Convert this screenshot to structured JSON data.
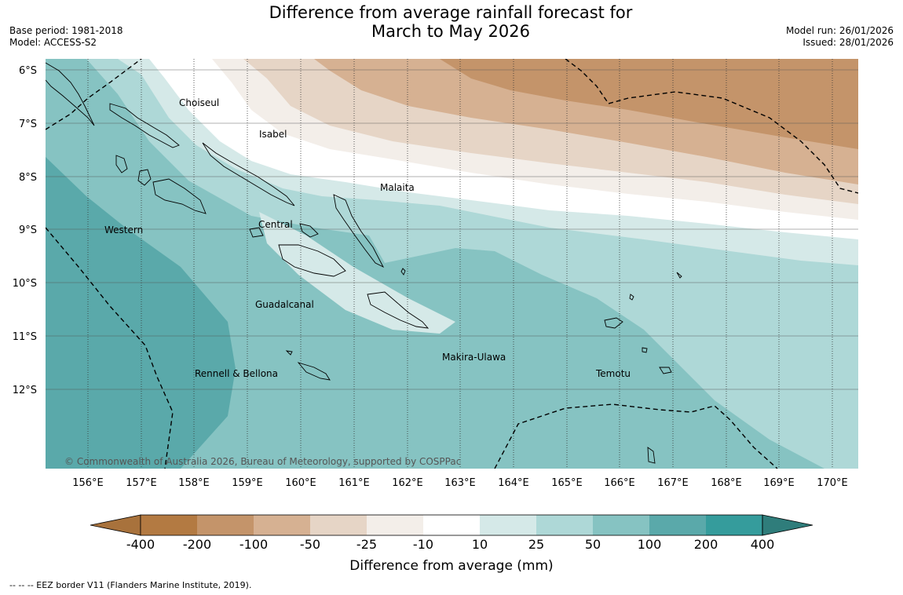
{
  "title_line1": "Difference from average rainfall forecast for",
  "title_line2": "March to May 2026",
  "meta_left": {
    "base_period": "Base period: 1981-2018",
    "model": "Model: ACCESS-S2"
  },
  "meta_right": {
    "model_run": "Model run: 26/01/2026",
    "issued": "Issued: 28/01/2026"
  },
  "map": {
    "lat_labels": [
      "6°S",
      "7°S",
      "8°S",
      "9°S",
      "10°S",
      "11°S",
      "12°S"
    ],
    "lon_labels": [
      "156°E",
      "157°E",
      "158°E",
      "159°E",
      "160°E",
      "161°E",
      "162°E",
      "163°E",
      "164°E",
      "165°E",
      "166°E",
      "167°E",
      "168°E",
      "169°E",
      "170°E"
    ],
    "regions": [
      "Choiseul",
      "Isabel",
      "Malaita",
      "Central",
      "Western",
      "Guadalcanal",
      "Rennell & Bellona",
      "Makira-Ulawa",
      "Temotu"
    ],
    "copyright": "© Commonwealth of Australia 2026, Bureau of Meteorology, supported by COSPPac"
  },
  "colorbar": {
    "colors": [
      "#a8723c",
      "#b37a42",
      "#c4946a",
      "#d6b192",
      "#e6d5c6",
      "#f3eee9",
      "#ffffff",
      "#d5e9e8",
      "#aed8d7",
      "#86c3c2",
      "#5aa9aa",
      "#359c9c",
      "#2f7d7b"
    ],
    "ticks": [
      "-400",
      "-200",
      "-100",
      "-50",
      "-25",
      "-10",
      "10",
      "25",
      "50",
      "100",
      "200",
      "400"
    ],
    "title": "Difference from average (mm)"
  },
  "footer": "--  --  -- EEZ border V11 (Flanders Marine Institute, 2019)."
}
